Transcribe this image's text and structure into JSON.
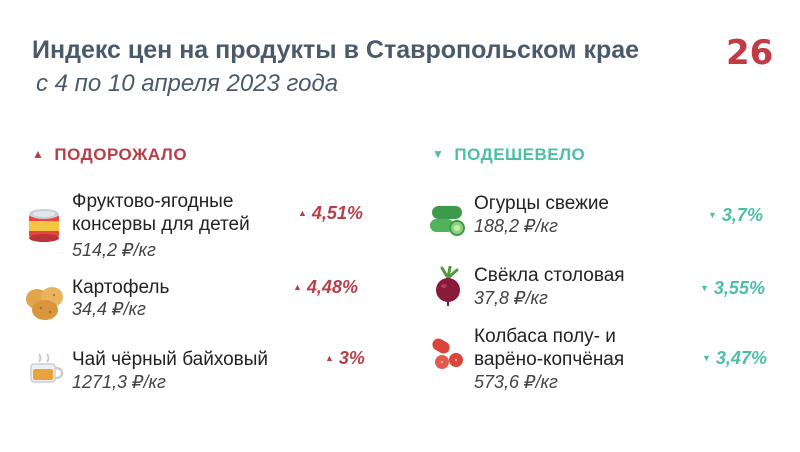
{
  "header": {
    "title": "Индекс цен на продукты в Ставропольском крае",
    "subtitle": "с 4 по 10 апреля 2023 года",
    "logo_text": "26"
  },
  "colors": {
    "up": "#b5404a",
    "down": "#4cbfa6",
    "text": "#4a5a6a"
  },
  "rise": {
    "heading": "ПОДОРОЖАЛО",
    "arrow_icon": "triangle-up-icon",
    "items": [
      {
        "icon": "canned-food-icon",
        "name_lines": [
          "Фруктово-ягодные",
          "консервы для детей"
        ],
        "price": "514,2 ₽/кг",
        "change": "4,51%"
      },
      {
        "icon": "potato-icon",
        "name_lines": [
          "Картофель"
        ],
        "price": "34,4 ₽/кг",
        "change": "4,48%"
      },
      {
        "icon": "tea-cup-icon",
        "name_lines": [
          "Чай чёрный байховый"
        ],
        "price": "1271,3 ₽/кг",
        "change": "3%"
      }
    ]
  },
  "fall": {
    "heading": "ПОДЕШЕВЕЛО",
    "arrow_icon": "triangle-down-icon",
    "items": [
      {
        "icon": "cucumber-icon",
        "name_lines": [
          "Огурцы свежие"
        ],
        "price": "188,2 ₽/кг",
        "change": "3,7%"
      },
      {
        "icon": "beet-icon",
        "name_lines": [
          "Свёкла столовая"
        ],
        "price": "37,8 ₽/кг",
        "change": "3,55%"
      },
      {
        "icon": "sausage-icon",
        "name_lines": [
          "Колбаса полу- и",
          "варёно-копчёная"
        ],
        "price": "573,6 ₽/кг",
        "change": "3,47%"
      }
    ]
  }
}
